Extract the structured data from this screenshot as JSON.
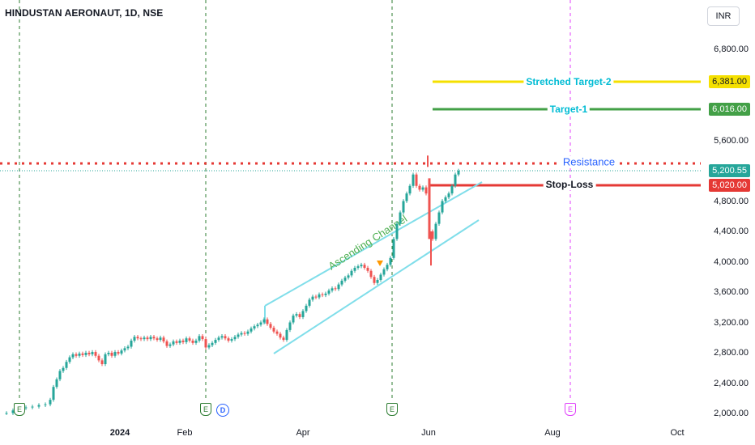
{
  "header": {
    "symbol_title": "HINDUSTAN AERONAUT, 1D, NSE",
    "currency": "INR"
  },
  "y_axis": {
    "ticks": [
      "6,800.00",
      "5,600.00",
      "4,800.00",
      "4,400.00",
      "4,000.00",
      "3,600.00",
      "3,200.00",
      "2,800.00",
      "2,400.00",
      "2,000.00"
    ],
    "tick_values": [
      6800,
      5600,
      4800,
      4400,
      4000,
      3600,
      3200,
      2800,
      2400,
      2000
    ]
  },
  "x_axis": {
    "ticks": [
      {
        "label": "2024",
        "bold": true
      },
      {
        "label": "Feb",
        "bold": false
      },
      {
        "label": "Apr",
        "bold": false
      },
      {
        "label": "Jun",
        "bold": false
      },
      {
        "label": "Aug",
        "bold": false
      },
      {
        "label": "Oct",
        "bold": false
      }
    ]
  },
  "levels": {
    "stretched_target": {
      "label": "Stretched Target-2",
      "price_label": "6,381.00",
      "value": 6381,
      "color": "#f5e000",
      "text_color": "#00bcd4"
    },
    "target1": {
      "label": "Target-1",
      "price_label": "6,016.00",
      "value": 6016,
      "color": "#43a047",
      "text_color": "#00bcd4"
    },
    "resistance": {
      "label": "Resistance",
      "value": 5330,
      "color": "#e53935",
      "text_color": "#2962ff"
    },
    "last_price": {
      "price_label": "5,200.55",
      "value": 5200.55,
      "color": "#26a69a"
    },
    "stop_loss": {
      "label": "Stop-Loss",
      "price_label": "5,020.00",
      "value": 5020,
      "color": "#e53935",
      "text_color": "#131722"
    }
  },
  "annotations": {
    "channel_label": "Ascending Channel",
    "channel_color": "#80deea",
    "channel_text_color": "#4caf50"
  },
  "event_markers": {
    "earnings": [
      "E",
      "E",
      "E",
      "E"
    ],
    "dividend": "D"
  },
  "colors": {
    "up": "#26a69a",
    "down": "#ef5350",
    "earnings_green": "#2e7d32",
    "earnings_future": "#e040fb"
  },
  "chart_data": {
    "type": "candlestick",
    "title": "HINDUSTAN AERONAUT, 1D, NSE",
    "y_range": [
      1960,
      7300
    ],
    "y_scale": "linear",
    "grid": false,
    "price_path_approx": [
      {
        "period": "Dec 2023",
        "close": 2100
      },
      {
        "period": "early Jan 2024",
        "close": 2750
      },
      {
        "period": "late Jan 2024",
        "close": 3000
      },
      {
        "period": "early Feb 2024",
        "close": 2900
      },
      {
        "period": "Mar 2024",
        "close": 3300
      },
      {
        "period": "mid Mar 2024",
        "close": 3000
      },
      {
        "period": "early Apr 2024",
        "close": 3550
      },
      {
        "period": "mid Apr 2024",
        "close": 4000
      },
      {
        "period": "late Apr 2024",
        "close": 3750
      },
      {
        "period": "mid May 2024",
        "close": 4600
      },
      {
        "period": "late May 2024",
        "close": 5100
      },
      {
        "period": "early Jun 2024",
        "close": 4100
      },
      {
        "period": "mid Jun 2024",
        "close": 5200
      }
    ]
  }
}
